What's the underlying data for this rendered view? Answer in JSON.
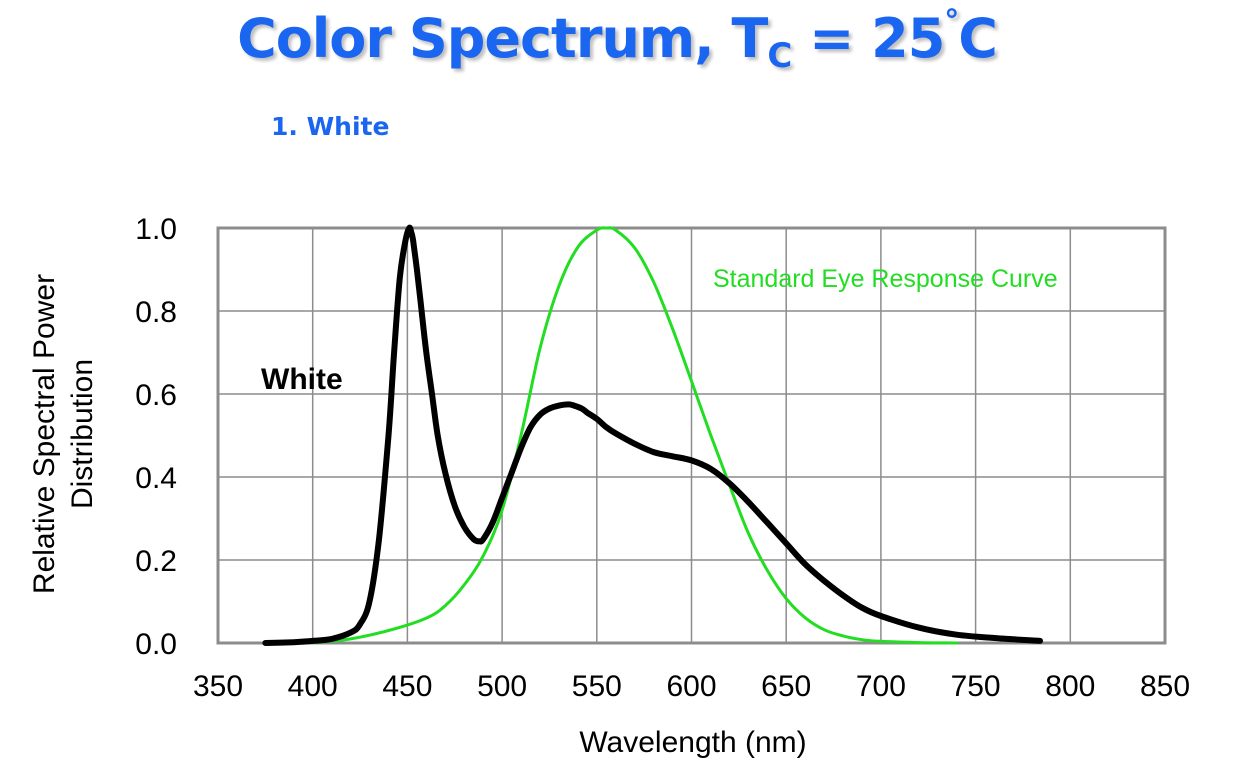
{
  "header": {
    "title_main": "Color Spectrum, T",
    "title_sub": "C",
    "title_eq": " = 25",
    "title_deg": "°",
    "title_unit": "C",
    "subtitle": "1. White"
  },
  "chart_data": {
    "type": "line",
    "xlabel": "Wavelength (nm)",
    "ylabel_line1": "Relative Spectral Power",
    "ylabel_line2": "Distribution",
    "xlim": [
      350,
      850
    ],
    "ylim": [
      0,
      1.0
    ],
    "xticks": [
      "350",
      "400",
      "450",
      "500",
      "550",
      "600",
      "650",
      "700",
      "750",
      "800",
      "850"
    ],
    "yticks": [
      "0.0",
      "0.2",
      "0.4",
      "0.6",
      "0.8",
      "1.0"
    ],
    "grid": true,
    "annotations": {
      "white_label": "White",
      "eye_label": "Standard Eye Response Curve"
    },
    "series": [
      {
        "name": "White",
        "color": "#000000",
        "x": [
          375,
          390,
          400,
          410,
          420,
          425,
          430,
          435,
          440,
          443,
          446,
          449,
          451,
          452,
          453,
          455,
          457,
          460,
          463,
          466,
          470,
          475,
          480,
          485,
          488,
          490,
          495,
          500,
          505,
          510,
          515,
          520,
          525,
          530,
          535,
          538,
          542,
          545,
          550,
          555,
          560,
          570,
          580,
          590,
          600,
          610,
          620,
          630,
          640,
          650,
          660,
          670,
          680,
          690,
          700,
          720,
          740,
          760,
          784
        ],
        "y": [
          0.0,
          0.002,
          0.005,
          0.01,
          0.025,
          0.045,
          0.1,
          0.25,
          0.5,
          0.7,
          0.88,
          0.97,
          1.0,
          0.99,
          0.97,
          0.9,
          0.82,
          0.7,
          0.6,
          0.5,
          0.41,
          0.33,
          0.28,
          0.25,
          0.245,
          0.25,
          0.29,
          0.35,
          0.41,
          0.47,
          0.52,
          0.55,
          0.565,
          0.572,
          0.575,
          0.572,
          0.565,
          0.555,
          0.54,
          0.52,
          0.505,
          0.48,
          0.46,
          0.45,
          0.44,
          0.42,
          0.385,
          0.34,
          0.29,
          0.24,
          0.19,
          0.15,
          0.115,
          0.085,
          0.065,
          0.037,
          0.02,
          0.012,
          0.005
        ]
      },
      {
        "name": "Standard Eye Response Curve",
        "color": "#22dd22",
        "x": [
          400,
          420,
          440,
          460,
          470,
          480,
          490,
          500,
          510,
          520,
          530,
          540,
          550,
          555,
          560,
          570,
          580,
          590,
          600,
          610,
          620,
          630,
          640,
          650,
          660,
          670,
          680,
          690,
          700,
          720,
          740
        ],
        "y": [
          0.0,
          0.01,
          0.03,
          0.06,
          0.09,
          0.14,
          0.21,
          0.32,
          0.5,
          0.71,
          0.86,
          0.954,
          0.995,
          1.0,
          0.995,
          0.952,
          0.87,
          0.757,
          0.631,
          0.503,
          0.381,
          0.265,
          0.175,
          0.107,
          0.061,
          0.032,
          0.017,
          0.008,
          0.004,
          0.001,
          0.0
        ]
      }
    ]
  }
}
